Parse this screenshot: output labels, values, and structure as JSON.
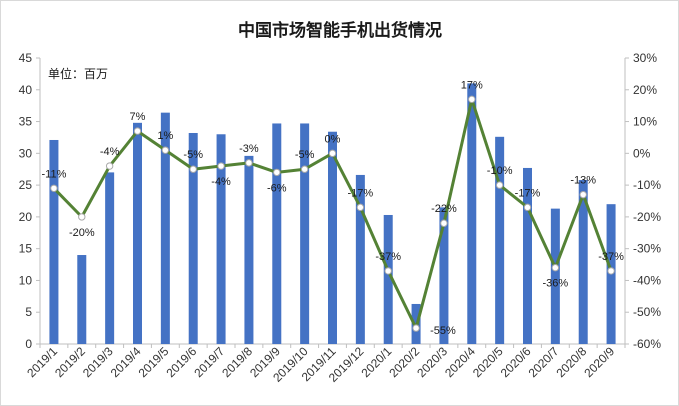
{
  "chart_data": {
    "type": "bar+line",
    "title": "中国市场智能手机出货情况",
    "unit_label": "单位：百万",
    "categories": [
      "2019/1",
      "2019/2",
      "2019/3",
      "2019/4",
      "2019/5",
      "2019/6",
      "2019/7",
      "2019/8",
      "2019/9",
      "2019/10",
      "2019/11",
      "2019/12",
      "2020/1",
      "2020/2",
      "2020/3",
      "2020/4",
      "2020/5",
      "2020/6",
      "2020/7",
      "2020/8",
      "2020/9"
    ],
    "series": [
      {
        "type": "bar",
        "axis": "left",
        "values": [
          32.1,
          14.0,
          27.0,
          34.8,
          36.4,
          33.2,
          33.0,
          29.6,
          34.7,
          34.7,
          33.4,
          26.6,
          20.3,
          6.3,
          21.5,
          41.0,
          32.6,
          27.7,
          21.3,
          25.8,
          22.0
        ]
      },
      {
        "type": "line",
        "axis": "right",
        "values": [
          -11,
          -20,
          -4,
          7,
          1,
          -5,
          -4,
          -3,
          -6,
          -5,
          0,
          -17,
          -37,
          -55,
          -22,
          17,
          -10,
          -17,
          -36,
          -13,
          -37
        ],
        "labels": [
          "-11%",
          "-20%",
          "-4%",
          "7%",
          "1%",
          "-5%",
          "-4%",
          "-3%",
          "-6%",
          "-5%",
          "0%",
          "-17%",
          "-37%",
          "-55%",
          "-22%",
          "17%",
          "-10%",
          "-17%",
          "-36%",
          "-13%",
          "-37%"
        ]
      }
    ],
    "y_left": {
      "min": 0,
      "max": 45,
      "step": 5,
      "ticks": [
        "0",
        "5",
        "10",
        "15",
        "20",
        "25",
        "30",
        "35",
        "40",
        "45"
      ]
    },
    "y_right": {
      "min": -60,
      "max": 30,
      "step": 10,
      "ticks": [
        "-60%",
        "-50%",
        "-40%",
        "-30%",
        "-20%",
        "-10%",
        "0%",
        "10%",
        "20%",
        "30%"
      ]
    },
    "grid": false,
    "legend": "none",
    "colors": {
      "bar": "#4472C4",
      "line": "#548235",
      "marker_fill": "#ffffff"
    }
  }
}
